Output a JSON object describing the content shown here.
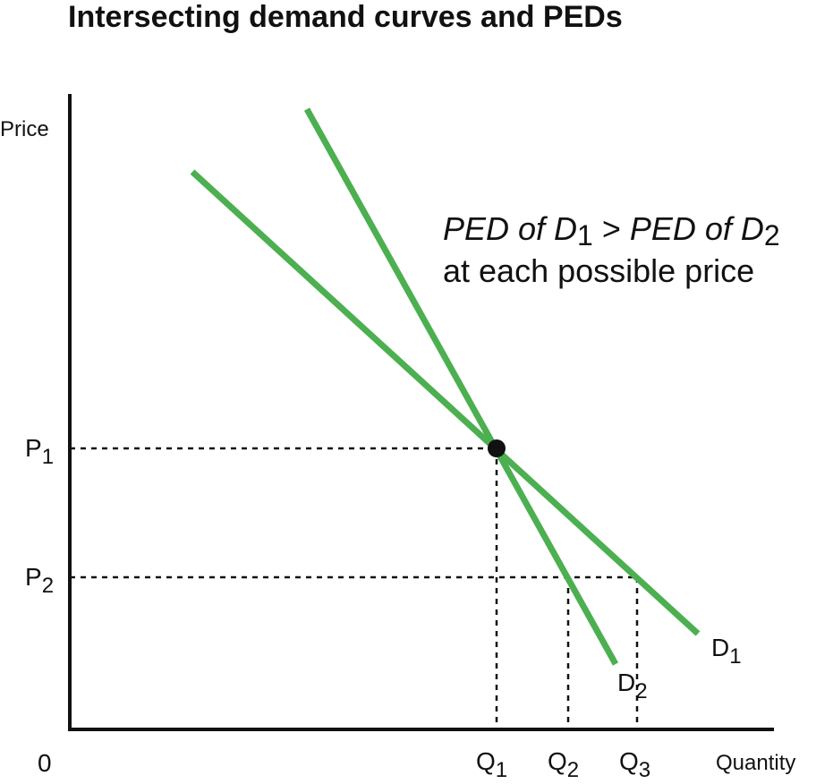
{
  "title": "Intersecting demand curves and PEDs",
  "axes": {
    "y_label": "Price",
    "x_label": "Quantity",
    "origin": "0"
  },
  "price_labels": [
    {
      "main": "P",
      "sub": "1"
    },
    {
      "main": "P",
      "sub": "2"
    }
  ],
  "quantity_labels": [
    {
      "main": "Q",
      "sub": "1"
    },
    {
      "main": "Q",
      "sub": "2"
    },
    {
      "main": "Q",
      "sub": "3"
    }
  ],
  "curves": [
    {
      "main": "D",
      "sub": "1"
    },
    {
      "main": "D",
      "sub": "2"
    }
  ],
  "annotation": {
    "line1": [
      {
        "text": "PED of D",
        "sub": "1"
      },
      {
        "text": " > "
      },
      {
        "text": "PED of D",
        "sub": "2"
      }
    ],
    "line2": "at each possible price"
  }
}
